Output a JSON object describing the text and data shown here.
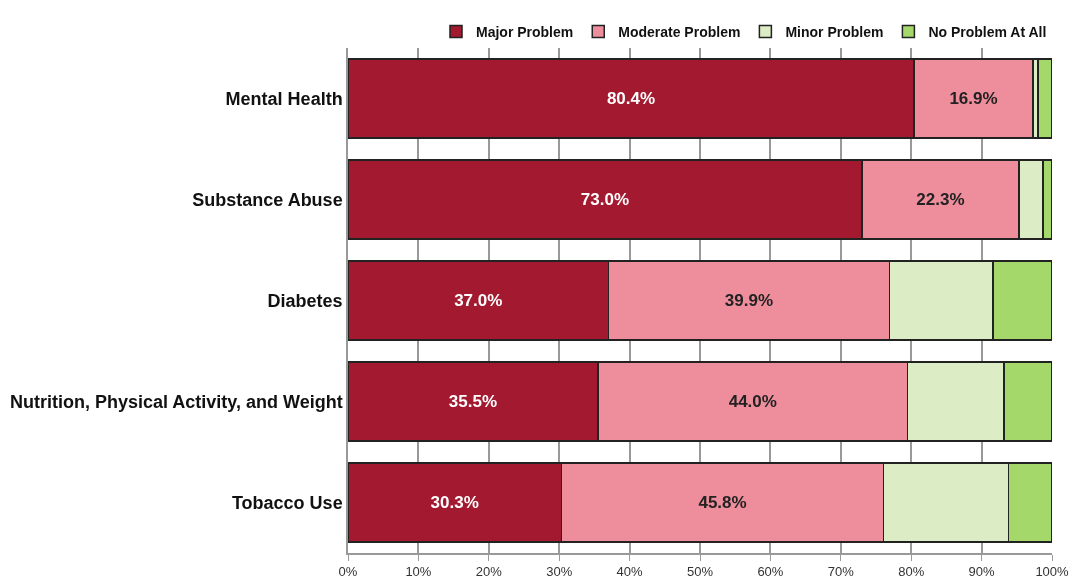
{
  "chart_data": {
    "type": "bar",
    "orientation": "horizontal",
    "stacked": true,
    "categories": [
      "Mental Health",
      "Substance Abuse",
      "Diabetes",
      "Nutrition, Physical Activity, and Weight",
      "Tobacco Use"
    ],
    "series": [
      {
        "name": "Major Problem",
        "color": "#a3192f",
        "values": [
          80.4,
          73.0,
          37.0,
          35.5,
          30.3
        ],
        "value_labels": [
          "80.4%",
          "73.0%",
          "37.0%",
          "35.5%",
          "30.3%"
        ]
      },
      {
        "name": "Moderate Problem",
        "color": "#ee8e9c",
        "values": [
          16.9,
          22.3,
          39.9,
          44.0,
          45.8
        ],
        "value_labels": [
          "16.9%",
          "22.3%",
          "39.9%",
          "44.0%",
          "45.8%"
        ]
      },
      {
        "name": "Minor Problem",
        "color": "#dcedc5",
        "values": [
          0.7,
          3.4,
          14.7,
          13.7,
          17.7
        ]
      },
      {
        "name": "No Problem At All",
        "color": "#a5d86a",
        "values": [
          2.0,
          1.3,
          8.4,
          6.8,
          6.2
        ]
      }
    ],
    "xlim": [
      0,
      100
    ],
    "xticks": [
      {
        "value": 0,
        "label": "0%"
      },
      {
        "value": 10,
        "label": "10%"
      },
      {
        "value": 20,
        "label": "20%"
      },
      {
        "value": 30,
        "label": "30%"
      },
      {
        "value": 40,
        "label": "40%"
      },
      {
        "value": 50,
        "label": "50%"
      },
      {
        "value": 60,
        "label": "60%"
      },
      {
        "value": 70,
        "label": "70%"
      },
      {
        "value": 80,
        "label": "80%"
      },
      {
        "value": 90,
        "label": "90%"
      },
      {
        "value": 100,
        "label": "100%"
      }
    ],
    "grid": "x",
    "legend": "top"
  }
}
